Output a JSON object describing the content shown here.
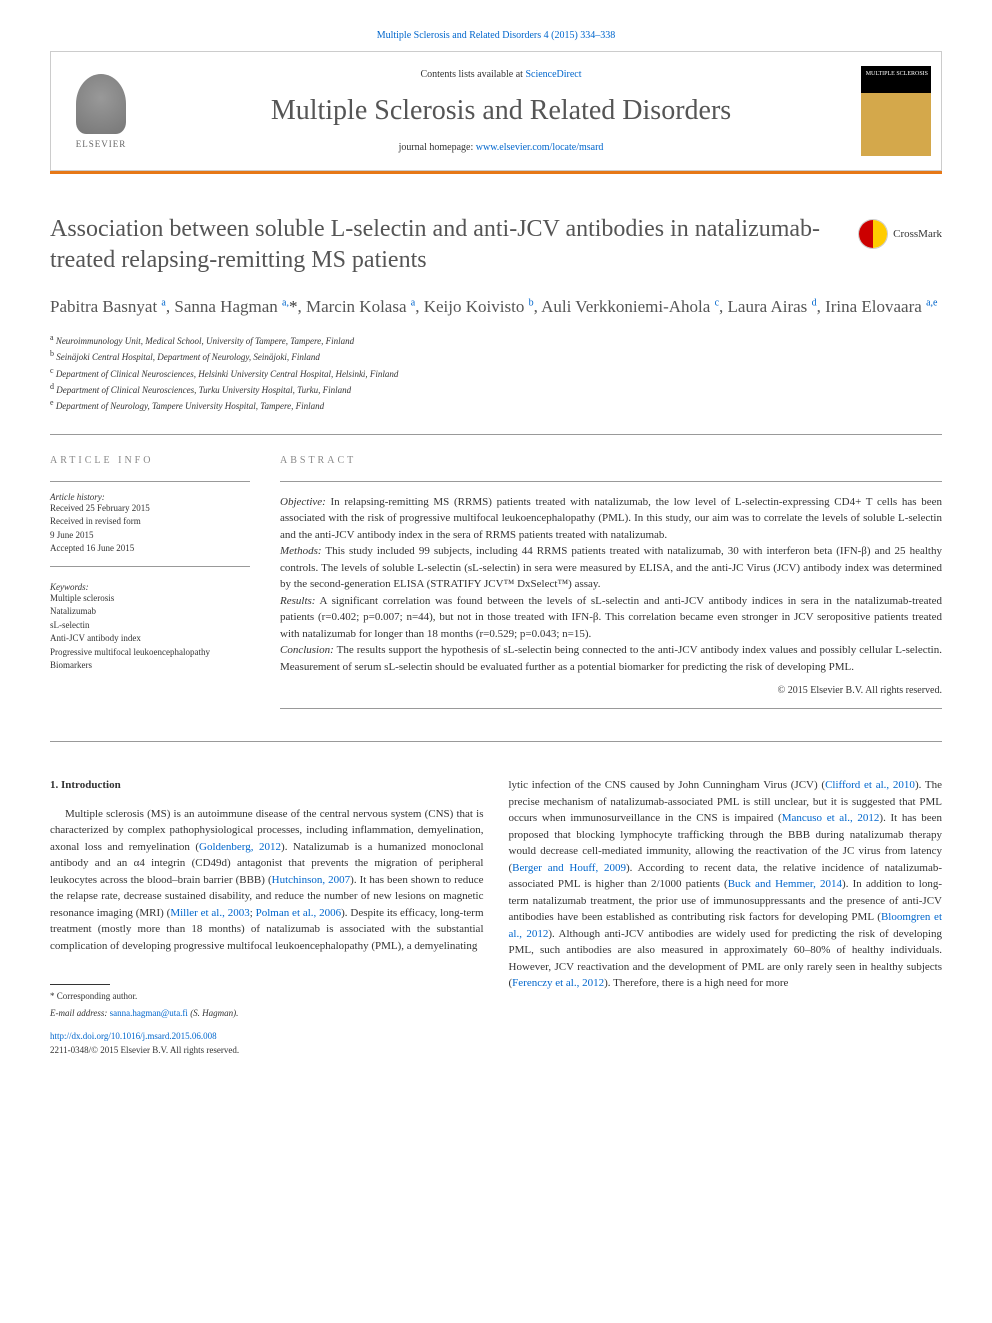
{
  "top_citation": "Multiple Sclerosis and Related Disorders 4 (2015) 334–338",
  "header": {
    "contents_text": "Contents lists available at ",
    "contents_link": "ScienceDirect",
    "journal_name": "Multiple Sclerosis and Related Disorders",
    "homepage_label": "journal homepage: ",
    "homepage_url": "www.elsevier.com/locate/msard",
    "elsevier_label": "ELSEVIER",
    "cover_text": "MULTIPLE SCLEROSIS"
  },
  "crossmark_label": "CrossMark",
  "title": "Association between soluble L-selectin and anti-JCV antibodies in natalizumab-treated relapsing-remitting MS patients",
  "authors_html": "Pabitra Basnyat <sup>a</sup>, Sanna Hagman <sup>a,</sup><span class='star'>*</span>, Marcin Kolasa <sup>a</sup>, Keijo Koivisto <sup>b</sup>, Auli Verkkoniemi-Ahola <sup>c</sup>, Laura Airas <sup>d</sup>, Irina Elovaara <sup>a,e</sup>",
  "affiliations": [
    {
      "sup": "a",
      "text": "Neuroimmunology Unit, Medical School, University of Tampere, Tampere, Finland"
    },
    {
      "sup": "b",
      "text": "Seinäjoki Central Hospital, Department of Neurology, Seinäjoki, Finland"
    },
    {
      "sup": "c",
      "text": "Department of Clinical Neurosciences, Helsinki University Central Hospital, Helsinki, Finland"
    },
    {
      "sup": "d",
      "text": "Department of Clinical Neurosciences, Turku University Hospital, Turku, Finland"
    },
    {
      "sup": "e",
      "text": "Department of Neurology, Tampere University Hospital, Tampere, Finland"
    }
  ],
  "article_info": {
    "heading": "ARTICLE INFO",
    "history_label": "Article history:",
    "history": "Received 25 February 2015\nReceived in revised form\n9 June 2015\nAccepted 16 June 2015",
    "keywords_label": "Keywords:",
    "keywords": "Multiple sclerosis\nNatalizumab\nsL-selectin\nAnti-JCV antibody index\nProgressive multifocal leukoencephalopathy\nBiomarkers"
  },
  "abstract": {
    "heading": "ABSTRACT",
    "objective_label": "Objective:",
    "objective": " In relapsing-remitting MS (RRMS) patients treated with natalizumab, the low level of L-selectin-expressing CD4+ T cells has been associated with the risk of progressive multifocal leukoencephalopathy (PML). In this study, our aim was to correlate the levels of soluble L-selectin and the anti-JCV antibody index in the sera of RRMS patients treated with natalizumab.",
    "methods_label": "Methods:",
    "methods": " This study included 99 subjects, including 44 RRMS patients treated with natalizumab, 30 with interferon beta (IFN-β) and 25 healthy controls. The levels of soluble L-selectin (sL-selectin) in sera were measured by ELISA, and the anti-JC Virus (JCV) antibody index was determined by the second-generation ELISA (STRATIFY JCV™ DxSelect™) assay.",
    "results_label": "Results:",
    "results": " A significant correlation was found between the levels of sL-selectin and anti-JCV antibody indices in sera in the natalizumab-treated patients (r=0.402; p=0.007; n=44), but not in those treated with IFN-β. This correlation became even stronger in JCV seropositive patients treated with natalizumab for longer than 18 months (r=0.529; p=0.043; n=15).",
    "conclusion_label": "Conclusion:",
    "conclusion": " The results support the hypothesis of sL-selectin being connected to the anti-JCV antibody index values and possibly cellular L-selectin. Measurement of serum sL-selectin should be evaluated further as a potential biomarker for predicting the risk of developing PML.",
    "copyright": "© 2015 Elsevier B.V. All rights reserved."
  },
  "body": {
    "section_num": "1.",
    "section_title": "Introduction",
    "col1": "Multiple sclerosis (MS) is an autoimmune disease of the central nervous system (CNS) that is characterized by complex pathophysiological processes, including inflammation, demyelination, axonal loss and remyelination (<a>Goldenberg, 2012</a>). Natalizumab is a humanized monoclonal antibody and an α4 integrin (CD49d) antagonist that prevents the migration of peripheral leukocytes across the blood–brain barrier (BBB) (<a>Hutchinson, 2007</a>). It has been shown to reduce the relapse rate, decrease sustained disability, and reduce the number of new lesions on magnetic resonance imaging (MRI) (<a>Miller et al., 2003</a>; <a>Polman et al., 2006</a>). Despite its efficacy, long-term treatment (mostly more than 18 months) of natalizumab is associated with the substantial complication of developing progressive multifocal leukoencephalopathy (PML), a demyelinating",
    "col2": "lytic infection of the CNS caused by John Cunningham Virus (JCV) (<a>Clifford et al., 2010</a>). The precise mechanism of natalizumab-associated PML is still unclear, but it is suggested that PML occurs when immunosurveillance in the CNS is impaired (<a>Mancuso et al., 2012</a>). It has been proposed that blocking lymphocyte trafficking through the BBB during natalizumab therapy would decrease cell-mediated immunity, allowing the reactivation of the JC virus from latency (<a>Berger and Houff, 2009</a>). According to recent data, the relative incidence of natalizumab-associated PML is higher than 2/1000 patients (<a>Buck and Hemmer, 2014</a>). In addition to long-term natalizumab treatment, the prior use of immunosuppressants and the presence of anti-JCV antibodies have been established as contributing risk factors for developing PML (<a>Bloomgren et al., 2012</a>). Although anti-JCV antibodies are widely used for predicting the risk of developing PML, such antibodies are also measured in approximately 60–80% of healthy individuals. However, JCV reactivation and the development of PML are only rarely seen in healthy subjects (<a>Ferenczy et al., 2012</a>). Therefore, there is a high need for more"
  },
  "footer": {
    "corresponding": "* Corresponding author.",
    "email_label": "E-mail address: ",
    "email": "sanna.hagman@uta.fi",
    "email_suffix": " (S. Hagman).",
    "doi": "http://dx.doi.org/10.1016/j.msard.2015.06.008",
    "issn": "2211-0348/© 2015 Elsevier B.V. All rights reserved."
  },
  "colors": {
    "link": "#0066cc",
    "orange": "#e67817",
    "text": "#333333",
    "heading_gray": "#888888"
  }
}
